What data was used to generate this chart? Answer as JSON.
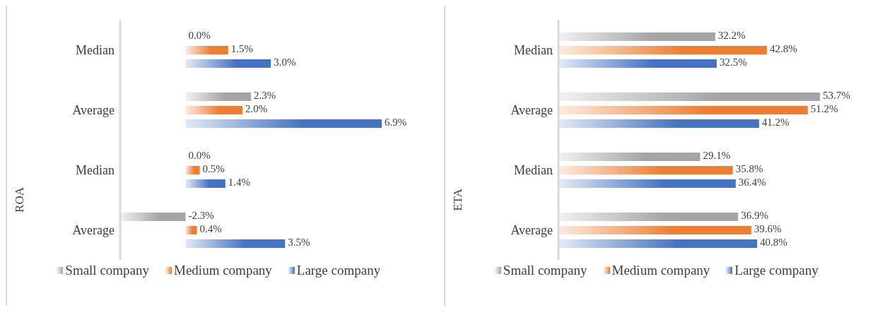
{
  "chart_data": [
    {
      "type": "bar",
      "orientation": "horizontal",
      "ylabel": "ROA",
      "categories": [
        "Median",
        "Average",
        "Median",
        "Average"
      ],
      "legend": "bottom",
      "series": [
        {
          "name": "Small company",
          "color": "#a5a5a5",
          "values": [
            0.0,
            2.3,
            0.0,
            -2.3
          ],
          "value_labels": [
            "0.0%",
            "2.3%",
            "0.0%",
            "-2.3%"
          ]
        },
        {
          "name": "Medium company",
          "color": "#ed7d31",
          "values": [
            1.5,
            2.0,
            0.5,
            0.4
          ],
          "value_labels": [
            "1.5%",
            "2.0%",
            "0.5%",
            "0.4%"
          ]
        },
        {
          "name": "Large company",
          "color": "#4472c4",
          "values": [
            3.0,
            6.9,
            1.4,
            3.5
          ],
          "value_labels": [
            "3.0%",
            "6.9%",
            "1.4%",
            "3.5%"
          ]
        }
      ]
    },
    {
      "type": "bar",
      "orientation": "horizontal",
      "ylabel": "ETA",
      "categories": [
        "Median",
        "Average",
        "Median",
        "Average"
      ],
      "legend": "bottom",
      "series": [
        {
          "name": "Small company",
          "color": "#a5a5a5",
          "values": [
            32.2,
            53.7,
            29.1,
            36.9
          ],
          "value_labels": [
            "32.2%",
            "53.7%",
            "29.1%",
            "36.9%"
          ]
        },
        {
          "name": "Medium company",
          "color": "#ed7d31",
          "values": [
            42.8,
            51.2,
            35.8,
            39.6
          ],
          "value_labels": [
            "42.8%",
            "51.2%",
            "35.8%",
            "39.6%"
          ]
        },
        {
          "name": "Large company",
          "color": "#4472c4",
          "values": [
            32.5,
            41.2,
            36.4,
            40.8
          ],
          "value_labels": [
            "32.5%",
            "41.2%",
            "36.4%",
            "40.8%"
          ]
        }
      ]
    }
  ]
}
